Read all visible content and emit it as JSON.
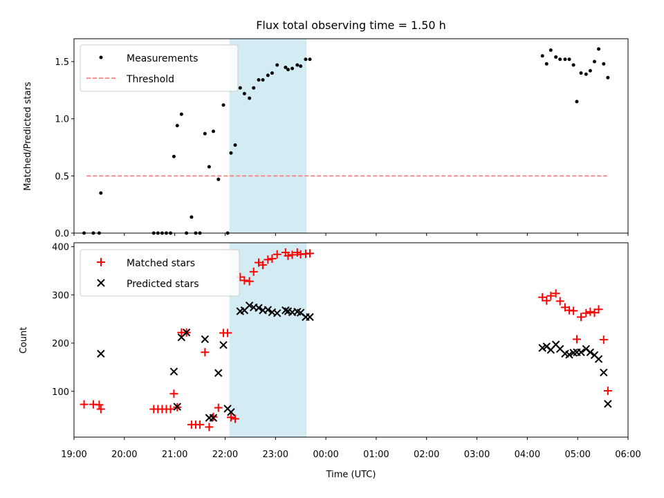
{
  "chart_data": [
    {
      "type": "scatter",
      "title": "Flux total observing time = 1.50 h",
      "ylabel": "Matched/Predicted stars",
      "xlabel": "",
      "xlim": [
        "19:00",
        "06:00"
      ],
      "ylim": [
        0,
        1.7
      ],
      "yticks": [
        "0.0",
        "0.5",
        "1.0",
        "1.5"
      ],
      "legend": {
        "placement": "top-left",
        "entries": [
          "Measurements",
          "Threshold"
        ]
      },
      "highlight_span": {
        "from": "22:05",
        "to": "23:37",
        "color": "#d3ebf2"
      },
      "series": [
        {
          "name": "Measurements",
          "marker": "dot",
          "color": "#000000",
          "points": [
            [
              "19:12",
              0.0
            ],
            [
              "19:23",
              0.0
            ],
            [
              "19:30",
              0.0
            ],
            [
              "19:32",
              0.35
            ],
            [
              "20:35",
              0.0
            ],
            [
              "20:40",
              0.0
            ],
            [
              "20:45",
              0.0
            ],
            [
              "20:50",
              0.0
            ],
            [
              "20:55",
              0.0
            ],
            [
              "20:59",
              0.67
            ],
            [
              "21:03",
              0.94
            ],
            [
              "21:08",
              1.04
            ],
            [
              "21:14",
              0.0
            ],
            [
              "21:20",
              0.14
            ],
            [
              "21:25",
              0.0
            ],
            [
              "21:30",
              0.0
            ],
            [
              "21:36",
              0.87
            ],
            [
              "21:41",
              0.58
            ],
            [
              "21:46",
              0.89
            ],
            [
              "21:52",
              0.47
            ],
            [
              "21:58",
              1.12
            ],
            [
              "22:03",
              0.0
            ],
            [
              "22:07",
              0.7
            ],
            [
              "22:12",
              0.77
            ],
            [
              "22:18",
              1.27
            ],
            [
              "22:23",
              1.22
            ],
            [
              "22:29",
              1.18
            ],
            [
              "22:34",
              1.27
            ],
            [
              "22:40",
              1.34
            ],
            [
              "22:45",
              1.34
            ],
            [
              "22:51",
              1.38
            ],
            [
              "22:56",
              1.4
            ],
            [
              "23:02",
              1.47
            ],
            [
              "23:12",
              1.45
            ],
            [
              "23:15",
              1.43
            ],
            [
              "23:20",
              1.44
            ],
            [
              "23:26",
              1.47
            ],
            [
              "23:30",
              1.46
            ],
            [
              "23:36",
              1.52
            ],
            [
              "23:41",
              1.52
            ],
            [
              "04:18",
              1.55
            ],
            [
              "04:23",
              1.48
            ],
            [
              "04:28",
              1.6
            ],
            [
              "04:34",
              1.54
            ],
            [
              "04:39",
              1.52
            ],
            [
              "04:45",
              1.52
            ],
            [
              "04:50",
              1.52
            ],
            [
              "04:55",
              1.47
            ],
            [
              "04:59",
              1.15
            ],
            [
              "05:04",
              1.4
            ],
            [
              "05:10",
              1.39
            ],
            [
              "05:15",
              1.42
            ],
            [
              "05:20",
              1.5
            ],
            [
              "05:25",
              1.61
            ],
            [
              "05:31",
              1.48
            ],
            [
              "05:36",
              1.36
            ]
          ]
        },
        {
          "name": "Threshold",
          "marker": "dashed-line",
          "color": "#ff7f7f",
          "points": [
            [
              "19:15",
              0.5
            ],
            [
              "05:35",
              0.5
            ]
          ]
        }
      ]
    },
    {
      "type": "scatter",
      "title": "",
      "ylabel": "Count",
      "xlabel": "Time (UTC)",
      "xlim": [
        "19:00",
        "06:00"
      ],
      "ylim": [
        5,
        408
      ],
      "yticks": [
        "100",
        "200",
        "300",
        "400"
      ],
      "xticks": [
        "19:00",
        "20:00",
        "21:00",
        "22:00",
        "23:00",
        "00:00",
        "01:00",
        "02:00",
        "03:00",
        "04:00",
        "05:00",
        "06:00"
      ],
      "legend": {
        "placement": "top-left",
        "entries": [
          "Matched stars",
          "Predicted stars"
        ]
      },
      "highlight_span": {
        "from": "22:05",
        "to": "23:37",
        "color": "#d3ebf2"
      },
      "series": [
        {
          "name": "Matched stars",
          "marker": "plus",
          "color": "#ff0000",
          "points": [
            [
              "19:12",
              73
            ],
            [
              "19:23",
              73
            ],
            [
              "19:30",
              72
            ],
            [
              "19:32",
              63
            ],
            [
              "20:35",
              63
            ],
            [
              "20:40",
              63
            ],
            [
              "20:45",
              63
            ],
            [
              "20:50",
              63
            ],
            [
              "20:55",
              63
            ],
            [
              "20:59",
              95
            ],
            [
              "21:03",
              67
            ],
            [
              "21:08",
              222
            ],
            [
              "21:14",
              222
            ],
            [
              "21:20",
              31
            ],
            [
              "21:25",
              31
            ],
            [
              "21:30",
              31
            ],
            [
              "21:36",
              181
            ],
            [
              "21:41",
              26
            ],
            [
              "21:46",
              47
            ],
            [
              "21:52",
              66
            ],
            [
              "21:58",
              221
            ],
            [
              "22:03",
              221
            ],
            [
              "22:07",
              46
            ],
            [
              "22:12",
              43
            ],
            [
              "22:18",
              337
            ],
            [
              "22:23",
              330
            ],
            [
              "22:29",
              328
            ],
            [
              "22:34",
              348
            ],
            [
              "22:40",
              367
            ],
            [
              "22:45",
              362
            ],
            [
              "22:51",
              373
            ],
            [
              "22:56",
              375
            ],
            [
              "23:02",
              384
            ],
            [
              "23:12",
              388
            ],
            [
              "23:15",
              381
            ],
            [
              "23:20",
              383
            ],
            [
              "23:26",
              388
            ],
            [
              "23:30",
              384
            ],
            [
              "23:36",
              385
            ],
            [
              "23:41",
              386
            ],
            [
              "04:18",
              295
            ],
            [
              "04:23",
              288
            ],
            [
              "04:28",
              298
            ],
            [
              "04:34",
              303
            ],
            [
              "04:39",
              287
            ],
            [
              "04:45",
              274
            ],
            [
              "04:50",
              268
            ],
            [
              "04:55",
              267
            ],
            [
              "04:59",
              208
            ],
            [
              "05:04",
              254
            ],
            [
              "05:10",
              262
            ],
            [
              "05:15",
              265
            ],
            [
              "05:20",
              263
            ],
            [
              "05:25",
              270
            ],
            [
              "05:31",
              207
            ],
            [
              "05:36",
              101
            ]
          ]
        },
        {
          "name": "Predicted stars",
          "marker": "x",
          "color": "#000000",
          "points": [
            [
              "19:32",
              178
            ],
            [
              "20:59",
              141
            ],
            [
              "21:03",
              68
            ],
            [
              "21:08",
              212
            ],
            [
              "21:14",
              222
            ],
            [
              "21:36",
              208
            ],
            [
              "21:41",
              45
            ],
            [
              "21:46",
              45
            ],
            [
              "21:52",
              138
            ],
            [
              "21:58",
              196
            ],
            [
              "22:03",
              64
            ],
            [
              "22:07",
              57
            ],
            [
              "22:18",
              266
            ],
            [
              "22:23",
              268
            ],
            [
              "22:29",
              278
            ],
            [
              "22:34",
              274
            ],
            [
              "22:40",
              273
            ],
            [
              "22:45",
              268
            ],
            [
              "22:51",
              269
            ],
            [
              "22:56",
              264
            ],
            [
              "23:02",
              262
            ],
            [
              "23:12",
              268
            ],
            [
              "23:15",
              266
            ],
            [
              "23:20",
              264
            ],
            [
              "23:26",
              265
            ],
            [
              "23:30",
              263
            ],
            [
              "23:36",
              254
            ],
            [
              "23:41",
              254
            ],
            [
              "04:18",
              190
            ],
            [
              "04:23",
              193
            ],
            [
              "04:28",
              186
            ],
            [
              "04:34",
              197
            ],
            [
              "04:39",
              188
            ],
            [
              "04:45",
              178
            ],
            [
              "04:50",
              176
            ],
            [
              "04:55",
              180
            ],
            [
              "04:59",
              181
            ],
            [
              "05:04",
              181
            ],
            [
              "05:10",
              188
            ],
            [
              "05:15",
              181
            ],
            [
              "05:20",
              175
            ],
            [
              "05:25",
              167
            ],
            [
              "05:31",
              139
            ],
            [
              "05:36",
              74
            ]
          ]
        }
      ]
    }
  ]
}
